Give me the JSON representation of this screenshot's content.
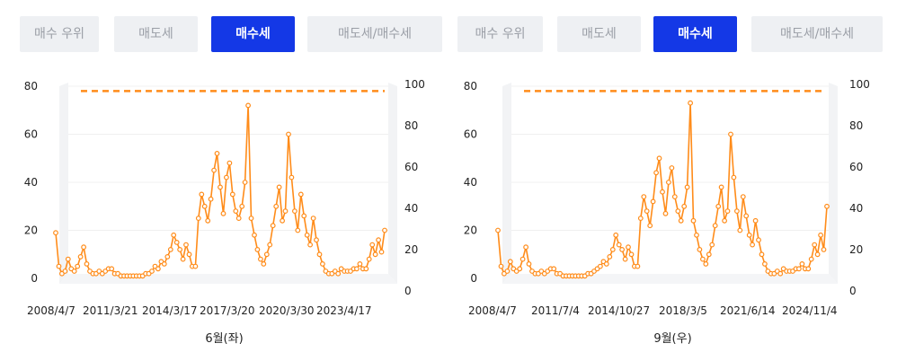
{
  "colors": {
    "accent": "#1438e6",
    "series": "#ff8c1a",
    "tab_bg": "#eef0f3",
    "tab_text": "#9a9ea6"
  },
  "panels": [
    {
      "tabs": [
        "매수 우위",
        "매도세",
        "매수세",
        "매도세/매수세"
      ],
      "active_tab": 2,
      "caption": "6월(좌)",
      "chart_data": {
        "type": "line",
        "x_ticks": [
          "2008/4/7",
          "2011/3/21",
          "2014/3/17",
          "2017/3/20",
          "2020/3/30",
          "2023/4/17"
        ],
        "y_left_ticks": [
          "0",
          "20",
          "40",
          "60",
          "80"
        ],
        "y_right_ticks": [
          "0",
          "20",
          "40",
          "60",
          "80",
          "100"
        ],
        "ylim_left": [
          0,
          80
        ],
        "ylim_right": [
          0,
          100
        ],
        "grid": true,
        "series": [
          {
            "values": [
              19,
              5,
              2,
              3,
              8,
              4,
              3,
              5,
              9,
              13,
              6,
              3,
              2,
              2,
              3,
              2,
              3,
              4,
              4,
              2,
              2,
              1,
              1,
              1,
              1,
              1,
              1,
              1,
              1,
              2,
              2,
              3,
              5,
              4,
              7,
              6,
              9,
              12,
              18,
              15,
              12,
              8,
              14,
              10,
              5,
              5,
              25,
              35,
              30,
              24,
              33,
              45,
              52,
              38,
              27,
              42,
              48,
              35,
              28,
              25,
              30,
              40,
              72,
              25,
              18,
              12,
              8,
              6,
              10,
              14,
              22,
              30,
              38,
              24,
              28,
              60,
              42,
              28,
              20,
              35,
              26,
              18,
              14,
              25,
              16,
              10,
              6,
              3,
              2,
              2,
              3,
              2,
              4,
              3,
              3,
              3,
              4,
              4,
              6,
              4,
              4,
              8,
              14,
              10,
              16,
              11,
              20
            ]
          }
        ],
        "reference_line": {
          "axis": "left",
          "value": 78
        }
      }
    },
    {
      "tabs": [
        "매수 우위",
        "매도세",
        "매수세",
        "매도세/매수세"
      ],
      "active_tab": 2,
      "caption": "9월(우)",
      "chart_data": {
        "type": "line",
        "x_ticks": [
          "2008/4/7",
          "2011/7/4",
          "2014/10/27",
          "2018/3/5",
          "2021/6/14",
          "2024/11/4"
        ],
        "y_left_ticks": [
          "0",
          "20",
          "40",
          "60",
          "80"
        ],
        "y_right_ticks": [
          "0",
          "20",
          "40",
          "60",
          "80",
          "100"
        ],
        "ylim_left": [
          0,
          80
        ],
        "ylim_right": [
          0,
          100
        ],
        "grid": true,
        "series": [
          {
            "values": [
              20,
              5,
              2,
              3,
              7,
              4,
              3,
              4,
              8,
              13,
              6,
              3,
              2,
              2,
              3,
              2,
              3,
              4,
              4,
              2,
              2,
              1,
              1,
              1,
              1,
              1,
              1,
              1,
              1,
              2,
              2,
              3,
              4,
              5,
              7,
              6,
              9,
              12,
              18,
              14,
              12,
              8,
              13,
              10,
              5,
              5,
              25,
              34,
              28,
              22,
              32,
              44,
              50,
              36,
              27,
              40,
              46,
              34,
              28,
              24,
              30,
              38,
              73,
              24,
              18,
              12,
              8,
              6,
              10,
              14,
              22,
              30,
              38,
              24,
              28,
              60,
              42,
              28,
              20,
              34,
              26,
              18,
              14,
              24,
              16,
              10,
              6,
              3,
              2,
              2,
              3,
              2,
              4,
              3,
              3,
              3,
              4,
              4,
              6,
              4,
              4,
              8,
              14,
              10,
              18,
              12,
              30
            ]
          }
        ],
        "reference_line": {
          "axis": "left",
          "value": 78
        }
      }
    }
  ]
}
